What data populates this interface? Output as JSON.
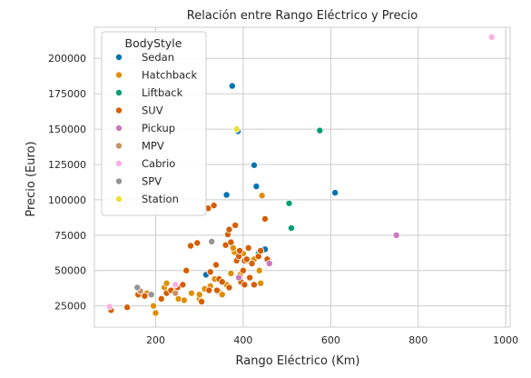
{
  "chart_data": {
    "type": "scatter",
    "title": "Relación entre Rango Eléctrico y Precio",
    "xlabel": "Rango Eléctrico (Km)",
    "ylabel": "Precio (Euro)",
    "xlim": [
      60,
      1010
    ],
    "ylim": [
      10000,
      222000
    ],
    "xticks": [
      200,
      400,
      600,
      800,
      1000
    ],
    "yticks": [
      25000,
      50000,
      75000,
      100000,
      125000,
      150000,
      175000,
      200000
    ],
    "xtick_labels": [
      "200",
      "400",
      "600",
      "800",
      "1000"
    ],
    "ytick_labels": [
      "25000",
      "50000",
      "75000",
      "100000",
      "125000",
      "150000",
      "175000",
      "200000"
    ],
    "grid": true,
    "legend_position": "top-left",
    "legend_title": "BodyStyle",
    "series": [
      {
        "name": "Sedan",
        "color": "#0173b2",
        "points": [
          [
            375,
            180500
          ],
          [
            388,
            148500
          ],
          [
            425,
            124500
          ],
          [
            430,
            109500
          ],
          [
            362,
            103500
          ],
          [
            610,
            105000
          ],
          [
            450,
            65000
          ],
          [
            315,
            47000
          ]
        ]
      },
      {
        "name": "Hatchback",
        "color": "#de8f05",
        "points": [
          [
            180,
            34000
          ],
          [
            195,
            25000
          ],
          [
            200,
            20000
          ],
          [
            220,
            38000
          ],
          [
            225,
            41000
          ],
          [
            245,
            37000
          ],
          [
            252,
            30000
          ],
          [
            265,
            29000
          ],
          [
            282,
            34000
          ],
          [
            300,
            30000
          ],
          [
            312,
            37000
          ],
          [
            325,
            39000
          ],
          [
            335,
            44000
          ],
          [
            345,
            35000
          ],
          [
            352,
            33000
          ],
          [
            362,
            40000
          ],
          [
            372,
            48000
          ],
          [
            380,
            63000
          ],
          [
            393,
            47000
          ],
          [
            400,
            62000
          ],
          [
            413,
            57000
          ],
          [
            425,
            58000
          ],
          [
            437,
            50000
          ],
          [
            440,
            41000
          ],
          [
            443,
            103000
          ],
          [
            377,
            66000
          ],
          [
            300,
            33000
          ]
        ]
      },
      {
        "name": "Liftback",
        "color": "#029e73",
        "points": [
          [
            575,
            149000
          ],
          [
            505,
            97500
          ],
          [
            510,
            80000
          ],
          [
            435,
            62000
          ]
        ]
      },
      {
        "name": "SUV",
        "color": "#d55e00",
        "points": [
          [
            98,
            22000
          ],
          [
            135,
            24000
          ],
          [
            160,
            33000
          ],
          [
            175,
            32000
          ],
          [
            213,
            30000
          ],
          [
            225,
            34000
          ],
          [
            235,
            36000
          ],
          [
            250,
            38000
          ],
          [
            262,
            40000
          ],
          [
            270,
            50000
          ],
          [
            280,
            67500
          ],
          [
            295,
            69500
          ],
          [
            305,
            28000
          ],
          [
            320,
            94000
          ],
          [
            325,
            49000
          ],
          [
            333,
            96000
          ],
          [
            338,
            54000
          ],
          [
            340,
            36000
          ],
          [
            345,
            44000
          ],
          [
            352,
            42000
          ],
          [
            360,
            68000
          ],
          [
            365,
            75500
          ],
          [
            368,
            79000
          ],
          [
            372,
            70000
          ],
          [
            382,
            82000
          ],
          [
            385,
            57000
          ],
          [
            390,
            60000
          ],
          [
            392,
            64000
          ],
          [
            395,
            42000
          ],
          [
            400,
            50000
          ],
          [
            403,
            57000
          ],
          [
            408,
            58000
          ],
          [
            412,
            66000
          ],
          [
            415,
            45000
          ],
          [
            420,
            55000
          ],
          [
            425,
            40000
          ],
          [
            435,
            60000
          ],
          [
            440,
            64000
          ],
          [
            450,
            86500
          ],
          [
            455,
            58000
          ],
          [
            322,
            36000
          ],
          [
            368,
            38000
          ],
          [
            403,
            40000
          ]
        ]
      },
      {
        "name": "Pickup",
        "color": "#cc78bc",
        "points": [
          [
            750,
            75000
          ],
          [
            460,
            55000
          ],
          [
            390,
            45000
          ]
        ]
      },
      {
        "name": "MPV",
        "color": "#ca9161",
        "points": [
          [
            165,
            35500
          ],
          [
            245,
            34000
          ]
        ]
      },
      {
        "name": "Cabrio",
        "color": "#fbafe4",
        "points": [
          [
            968,
            215000
          ],
          [
            95,
            24500
          ],
          [
            245,
            40000
          ]
        ]
      },
      {
        "name": "SPV",
        "color": "#949494",
        "points": [
          [
            158,
            38000
          ],
          [
            190,
            33000
          ],
          [
            328,
            70500
          ]
        ]
      },
      {
        "name": "Station",
        "color": "#ece133",
        "points": [
          [
            385,
            150000
          ]
        ]
      }
    ]
  }
}
